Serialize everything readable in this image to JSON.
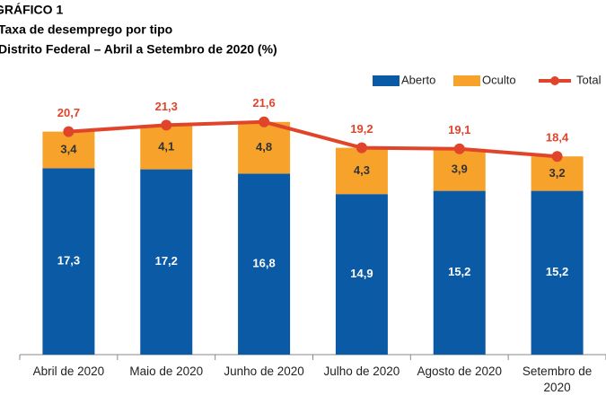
{
  "chart_data": {
    "type": "stacked-bar-line",
    "title": "GRÁFICO 1",
    "subtitle": "Taxa de desemprego por tipo",
    "subtitle2": "Distrito Federal – Abril a Setembro de 2020 (%)",
    "categories": [
      "Abril de 2020",
      "Maio de 2020",
      "Junho de 2020",
      "Julho de 2020",
      "Agosto de 2020",
      "Setembro de 2020"
    ],
    "ylim": [
      0,
      25
    ],
    "legend": "top-right",
    "series": [
      {
        "name": "Aberto",
        "color": "#0b5aa6",
        "values": [
          17.3,
          17.2,
          16.8,
          14.9,
          15.2,
          15.2
        ],
        "value_labels": [
          "17,3",
          "17,2",
          "16,8",
          "14,9",
          "15,2",
          "15,2"
        ]
      },
      {
        "name": "Oculto",
        "color": "#f7a22b",
        "values": [
          3.4,
          4.1,
          4.8,
          4.3,
          3.9,
          3.2
        ],
        "value_labels": [
          "3,4",
          "4,1",
          "4,8",
          "4,3",
          "3,9",
          "3,2"
        ]
      },
      {
        "name": "Total",
        "color": "#e0452b",
        "type": "line",
        "values": [
          20.7,
          21.3,
          21.6,
          19.2,
          19.1,
          18.4
        ],
        "value_labels": [
          "20,7",
          "21,3",
          "21,6",
          "19,2",
          "19,1",
          "18,4"
        ]
      }
    ]
  }
}
